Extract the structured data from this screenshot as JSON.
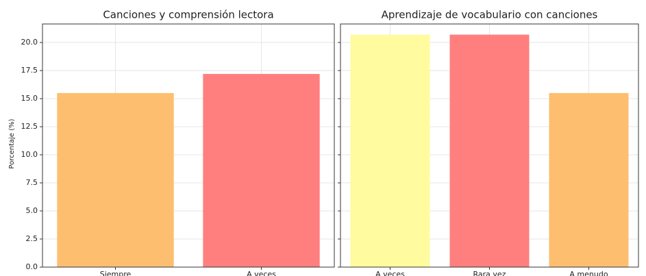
{
  "chart_data": [
    {
      "type": "bar",
      "title": "Canciones y comprensión lectora",
      "ylabel": "Porcentaje (%)",
      "categories": [
        "Siempre",
        "A veces"
      ],
      "values": [
        15.5,
        17.2
      ],
      "colors": [
        "#fdbf6f",
        "#ff7f7f"
      ],
      "ylim": [
        0,
        21.65
      ],
      "yticks": [
        {
          "value": 0,
          "label": "0.0"
        },
        2.5,
        {
          "value": 5,
          "label": "5.0"
        },
        7.5,
        {
          "value": 10,
          "label": "10.0"
        },
        12.5,
        {
          "value": 15,
          "label": "15.0"
        },
        17.5,
        {
          "value": 20,
          "label": "20.0"
        }
      ],
      "grid": true
    },
    {
      "type": "bar",
      "title": "Aprendizaje de vocabulario con canciones",
      "categories": [
        "A veces",
        "Rara vez",
        "A menudo"
      ],
      "values": [
        20.7,
        20.7,
        15.5
      ],
      "colors": [
        "#fffb9e",
        "#ff7f7f",
        "#fdbf6f"
      ],
      "ylim": [
        0,
        21.65
      ],
      "yticks": [
        0,
        2.5,
        5,
        7.5,
        10,
        12.5,
        15,
        17.5,
        20
      ],
      "grid": true
    }
  ]
}
